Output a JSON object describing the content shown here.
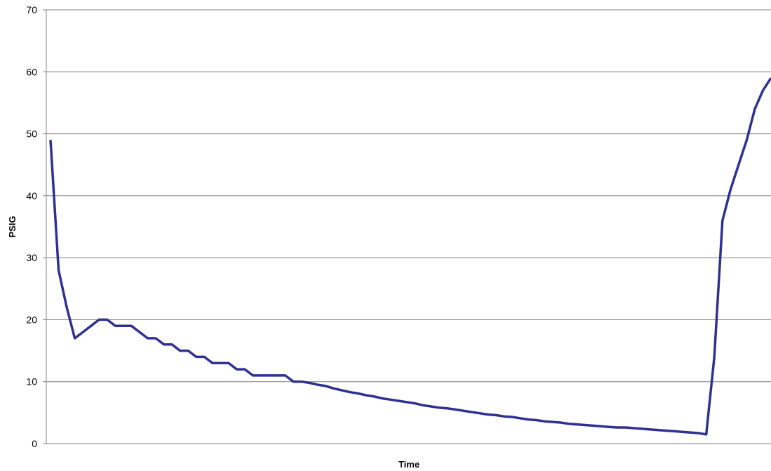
{
  "chart_data": {
    "type": "line",
    "title": "",
    "xlabel": "Time",
    "ylabel": "PSIG",
    "ylim": [
      0,
      70
    ],
    "yticks": [
      0,
      10,
      20,
      30,
      40,
      50,
      60,
      70
    ],
    "grid": true,
    "legend": "none",
    "colors": {
      "series": "#2f3192",
      "grid": "#808080",
      "axis": "#808080"
    },
    "x": [
      0,
      1,
      2,
      3,
      4,
      5,
      6,
      7,
      8,
      9,
      10,
      11,
      12,
      13,
      14,
      15,
      16,
      17,
      18,
      19,
      20,
      21,
      22,
      23,
      24,
      25,
      26,
      27,
      28,
      29,
      30,
      31,
      32,
      33,
      34,
      35,
      36,
      37,
      38,
      39,
      40,
      41,
      42,
      43,
      44,
      45,
      46,
      47,
      48,
      49,
      50,
      51,
      52,
      53,
      54,
      55,
      56,
      57,
      58,
      59,
      60,
      61,
      62,
      63,
      64,
      65,
      66,
      67,
      68,
      69,
      70,
      71,
      72,
      73,
      74,
      75,
      76,
      77,
      78,
      79,
      80,
      81,
      82,
      83,
      84,
      85,
      86,
      87,
      88,
      89
    ],
    "series": [
      {
        "values": [
          49,
          28,
          22,
          17,
          18,
          19,
          20,
          20,
          19,
          19,
          19,
          18,
          17,
          17,
          16,
          16,
          15,
          15,
          14,
          14,
          13,
          13,
          13,
          12,
          12,
          11,
          11,
          11,
          11,
          11,
          10,
          10,
          9.8,
          9.5,
          9.3,
          8.9,
          8.6,
          8.3,
          8.1,
          7.8,
          7.6,
          7.3,
          7.1,
          6.9,
          6.7,
          6.5,
          6.2,
          6,
          5.8,
          5.7,
          5.5,
          5.3,
          5.1,
          4.9,
          4.7,
          4.6,
          4.4,
          4.3,
          4.1,
          3.9,
          3.8,
          3.6,
          3.5,
          3.4,
          3.2,
          3.1,
          3,
          2.9,
          2.8,
          2.7,
          2.6,
          2.6,
          2.5,
          2.4,
          2.3,
          2.2,
          2.1,
          2,
          1.9,
          1.8,
          1.7,
          1.5,
          14,
          36,
          41,
          45,
          49,
          54,
          57,
          59
        ]
      }
    ]
  }
}
